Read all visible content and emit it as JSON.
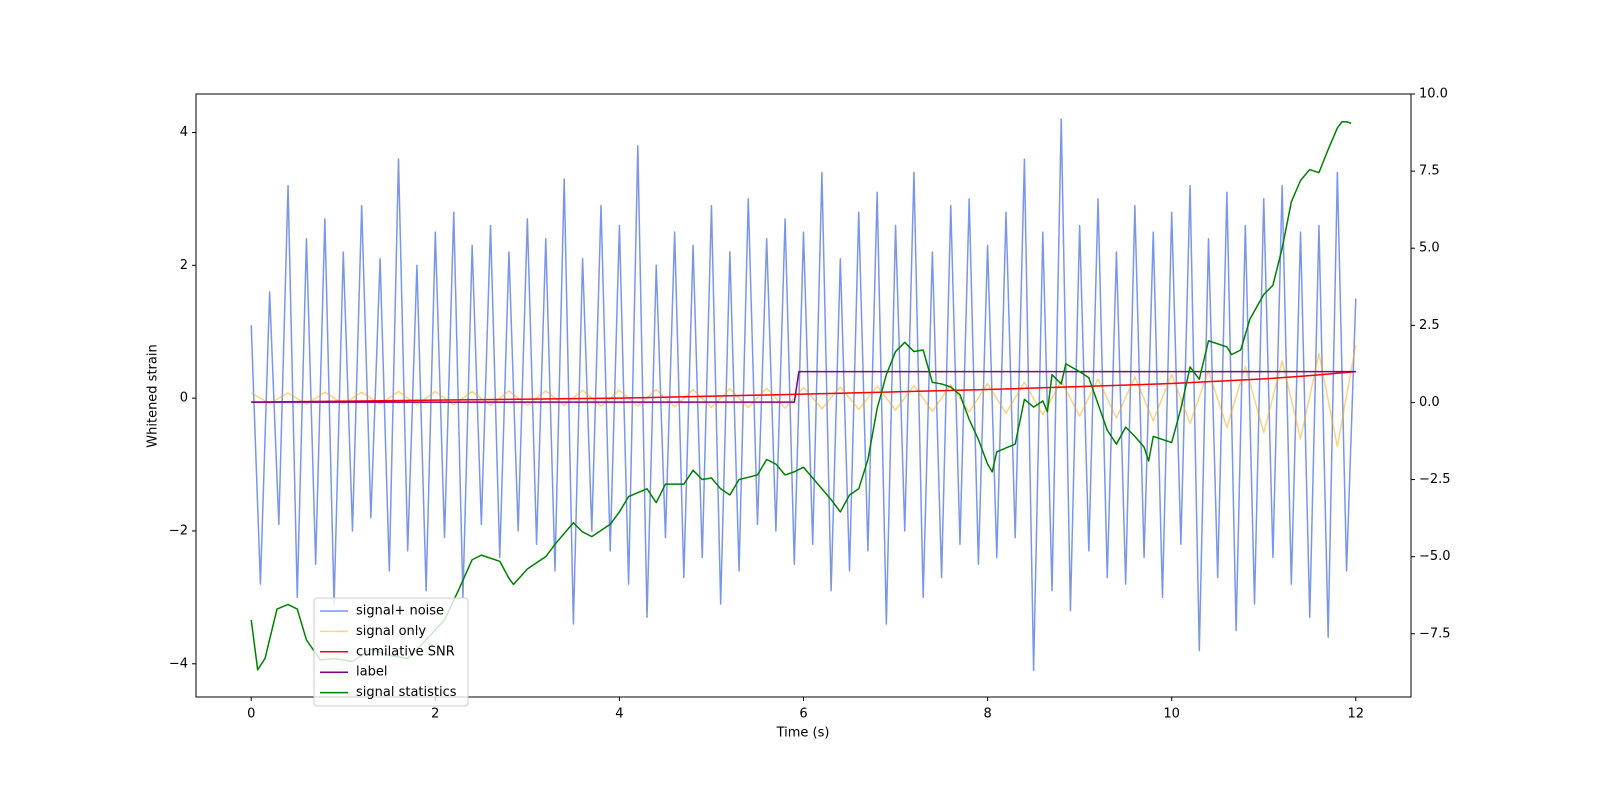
{
  "chart_data": {
    "type": "line",
    "xlabel": "Time (s)",
    "ylabel": "Whitened strain",
    "xlim": [
      -0.6,
      12.6
    ],
    "ylim": [
      -4.5,
      4.58
    ],
    "y2lim": [
      -9.55,
      10.0
    ],
    "xticks": [
      0,
      2,
      4,
      6,
      8,
      10,
      12
    ],
    "yticks": [
      {
        "value": -4,
        "label": "−4"
      },
      {
        "value": -2,
        "label": "−2"
      },
      0,
      2,
      4
    ],
    "y2ticks": [
      {
        "value": -7.5,
        "label": "−7.5"
      },
      {
        "value": -5,
        "label": "−5.0"
      },
      {
        "value": -2.5,
        "label": "−2.5"
      },
      {
        "value": 0,
        "label": "0.0"
      },
      2.5,
      {
        "value": 5,
        "label": "5.0"
      },
      7.5,
      {
        "value": 10,
        "label": "10.0"
      }
    ],
    "legend": "lower left",
    "series": [
      {
        "name": "signal+ noise",
        "color": "#4169e1",
        "alpha": 0.7,
        "x": [
          0,
          0.1,
          0.2,
          0.3,
          0.4,
          0.5,
          0.6,
          0.7,
          0.8,
          0.9,
          1,
          1.1,
          1.2,
          1.3,
          1.4,
          1.5,
          1.6,
          1.7,
          1.8,
          1.9,
          2,
          2.1,
          2.2,
          2.3,
          2.4,
          2.5,
          2.6,
          2.7,
          2.8,
          2.9,
          3,
          3.1,
          3.2,
          3.3,
          3.4,
          3.5,
          3.6,
          3.7,
          3.8,
          3.9,
          4,
          4.1,
          4.2,
          4.3,
          4.4,
          4.5,
          4.6,
          4.7,
          4.8,
          4.9,
          5,
          5.1,
          5.2,
          5.3,
          5.4,
          5.5,
          5.6,
          5.7,
          5.8,
          5.9,
          6,
          6.1,
          6.2,
          6.3,
          6.4,
          6.5,
          6.6,
          6.7,
          6.8,
          6.9,
          7,
          7.1,
          7.2,
          7.3,
          7.4,
          7.5,
          7.6,
          7.7,
          7.8,
          7.9,
          8,
          8.1,
          8.2,
          8.3,
          8.4,
          8.5,
          8.6,
          8.7,
          8.8,
          8.9,
          9,
          9.1,
          9.2,
          9.3,
          9.4,
          9.5,
          9.6,
          9.7,
          9.8,
          9.9,
          10,
          10.1,
          10.2,
          10.3,
          10.4,
          10.5,
          10.6,
          10.7,
          10.8,
          10.9,
          11,
          11.1,
          11.2,
          11.3,
          11.4,
          11.5,
          11.6,
          11.7,
          11.8,
          11.9,
          12
        ],
        "values": [
          1.1,
          -2.8,
          1.6,
          -1.9,
          3.2,
          -3.0,
          2.4,
          -2.5,
          2.7,
          -3.1,
          2.2,
          -2.0,
          2.9,
          -1.8,
          2.1,
          -2.6,
          3.6,
          -2.3,
          2.0,
          -2.9,
          2.5,
          -2.1,
          2.8,
          -3.0,
          2.3,
          -1.9,
          2.6,
          -2.4,
          2.2,
          -2.0,
          2.7,
          -2.2,
          2.4,
          -2.6,
          3.3,
          -3.4,
          2.1,
          -2.0,
          2.9,
          -2.3,
          2.6,
          -2.8,
          3.8,
          -3.3,
          2.0,
          -2.1,
          2.5,
          -2.7,
          2.3,
          -2.4,
          2.9,
          -3.1,
          2.2,
          -2.6,
          3.0,
          -1.9,
          2.4,
          -2.0,
          2.7,
          -2.5,
          2.5,
          -2.2,
          3.4,
          -2.9,
          2.1,
          -2.6,
          2.8,
          -2.3,
          3.1,
          -3.4,
          2.6,
          -2.0,
          3.4,
          -3.0,
          2.2,
          -2.7,
          2.9,
          -2.2,
          3.0,
          -2.5,
          2.3,
          -2.4,
          2.8,
          -2.1,
          3.6,
          -4.1,
          2.5,
          -2.9,
          4.2,
          -3.2,
          2.6,
          -2.3,
          3.0,
          -2.7,
          2.2,
          -2.8,
          2.9,
          -2.4,
          2.5,
          -3.0,
          2.8,
          -2.2,
          3.2,
          -3.8,
          2.4,
          -2.7,
          3.1,
          -3.5,
          2.6,
          -3.1,
          3.0,
          -2.4,
          3.2,
          -2.8,
          2.5,
          -3.3,
          2.6,
          -3.6,
          3.4,
          -2.6,
          1.5
        ]
      },
      {
        "name": "signal only",
        "color": "#ffa500",
        "alpha": 0.5,
        "x": [
          0,
          0.2,
          0.4,
          0.6,
          0.8,
          1,
          1.2,
          1.4,
          1.6,
          1.8,
          2,
          2.2,
          2.4,
          2.6,
          2.8,
          3,
          3.2,
          3.4,
          3.6,
          3.8,
          4,
          4.2,
          4.4,
          4.6,
          4.8,
          5,
          5.2,
          5.4,
          5.6,
          5.8,
          6,
          6.2,
          6.4,
          6.6,
          6.8,
          7,
          7.2,
          7.4,
          7.6,
          7.8,
          8,
          8.2,
          8.4,
          8.6,
          8.8,
          9,
          9.2,
          9.4,
          9.6,
          9.8,
          10,
          10.2,
          10.4,
          10.6,
          10.8,
          11,
          11.2,
          11.4,
          11.6,
          11.8,
          12
        ],
        "values": [
          0.08,
          -0.08,
          0.08,
          -0.09,
          0.09,
          -0.09,
          0.09,
          -0.09,
          0.1,
          -0.1,
          0.1,
          -0.1,
          0.1,
          -0.11,
          0.11,
          -0.11,
          0.11,
          -0.11,
          0.12,
          -0.12,
          0.12,
          -0.12,
          0.13,
          -0.13,
          0.13,
          -0.14,
          0.14,
          -0.14,
          0.15,
          -0.15,
          0.16,
          -0.16,
          0.17,
          -0.17,
          0.18,
          -0.18,
          0.19,
          -0.2,
          0.2,
          -0.21,
          0.22,
          -0.23,
          0.24,
          -0.25,
          0.26,
          -0.27,
          0.29,
          -0.3,
          0.32,
          -0.34,
          0.36,
          -0.38,
          0.41,
          -0.44,
          0.48,
          -0.52,
          0.56,
          -0.61,
          0.67,
          -0.73,
          0.8
        ]
      },
      {
        "name": "cumilative SNR",
        "color": "#ff0000",
        "x": [
          0,
          2,
          4,
          6,
          8,
          10,
          11,
          11.5,
          12
        ],
        "values": [
          -0.06,
          -0.03,
          0.0,
          0.06,
          0.13,
          0.22,
          0.29,
          0.34,
          0.4
        ]
      },
      {
        "name": "label",
        "color": "#800080",
        "x": [
          0,
          5.9,
          5.95,
          12
        ],
        "values": [
          -0.06,
          -0.06,
          0.4,
          0.4
        ]
      },
      {
        "name": "signal statistics",
        "color": "#008000",
        "axis": "y2",
        "x": [
          0,
          0.07,
          0.15,
          0.28,
          0.4,
          0.5,
          0.6,
          0.75,
          0.9,
          1.1,
          1.3,
          1.5,
          1.7,
          1.9,
          2.1,
          2.25,
          2.4,
          2.5,
          2.7,
          2.8,
          2.85,
          3.0,
          3.2,
          3.3,
          3.5,
          3.6,
          3.7,
          3.9,
          4.0,
          4.1,
          4.3,
          4.4,
          4.5,
          4.7,
          4.8,
          4.9,
          5.0,
          5.1,
          5.2,
          5.3,
          5.5,
          5.6,
          5.7,
          5.8,
          5.9,
          6.0,
          6.1,
          6.3,
          6.4,
          6.5,
          6.6,
          6.7,
          6.8,
          6.9,
          7.0,
          7.1,
          7.2,
          7.3,
          7.4,
          7.5,
          7.6,
          7.7,
          7.8,
          7.9,
          8.0,
          8.05,
          8.1,
          8.3,
          8.4,
          8.5,
          8.6,
          8.65,
          8.7,
          8.8,
          8.85,
          9.0,
          9.1,
          9.2,
          9.3,
          9.4,
          9.5,
          9.6,
          9.7,
          9.75,
          9.8,
          10.0,
          10.1,
          10.2,
          10.3,
          10.4,
          10.6,
          10.65,
          10.75,
          10.85,
          11.0,
          11.1,
          11.2,
          11.3,
          11.4,
          11.5,
          11.6,
          11.7,
          11.8,
          11.85,
          11.9,
          11.95
        ],
        "values": [
          -7.05,
          -8.67,
          -8.3,
          -6.7,
          -6.55,
          -6.7,
          -7.7,
          -8.35,
          -8.3,
          -8.4,
          -8.0,
          -8.2,
          -8.3,
          -7.7,
          -7.05,
          -6.1,
          -5.1,
          -4.95,
          -5.15,
          -5.7,
          -5.9,
          -5.4,
          -5.0,
          -4.6,
          -3.9,
          -4.2,
          -4.35,
          -3.95,
          -3.55,
          -3.05,
          -2.8,
          -3.25,
          -2.65,
          -2.65,
          -2.2,
          -2.5,
          -2.45,
          -2.8,
          -3.0,
          -2.5,
          -2.35,
          -1.85,
          -2.0,
          -2.35,
          -2.25,
          -2.1,
          -2.45,
          -3.15,
          -3.55,
          -3.0,
          -2.8,
          -1.85,
          -0.2,
          0.9,
          1.65,
          1.95,
          1.65,
          1.7,
          0.65,
          0.6,
          0.5,
          0.25,
          -0.55,
          -1.2,
          -2.0,
          -2.25,
          -1.6,
          -1.35,
          0.1,
          -0.15,
          0.05,
          -0.3,
          0.9,
          0.6,
          1.25,
          1.0,
          0.8,
          -0.05,
          -0.9,
          -1.35,
          -0.8,
          -1.1,
          -1.45,
          -1.9,
          -1.1,
          -1.3,
          -0.2,
          1.15,
          0.75,
          2.0,
          1.8,
          1.55,
          1.7,
          2.7,
          3.5,
          3.8,
          5.0,
          6.5,
          7.2,
          7.55,
          7.45,
          8.2,
          8.9,
          9.1,
          9.1,
          9.05
        ]
      }
    ]
  }
}
